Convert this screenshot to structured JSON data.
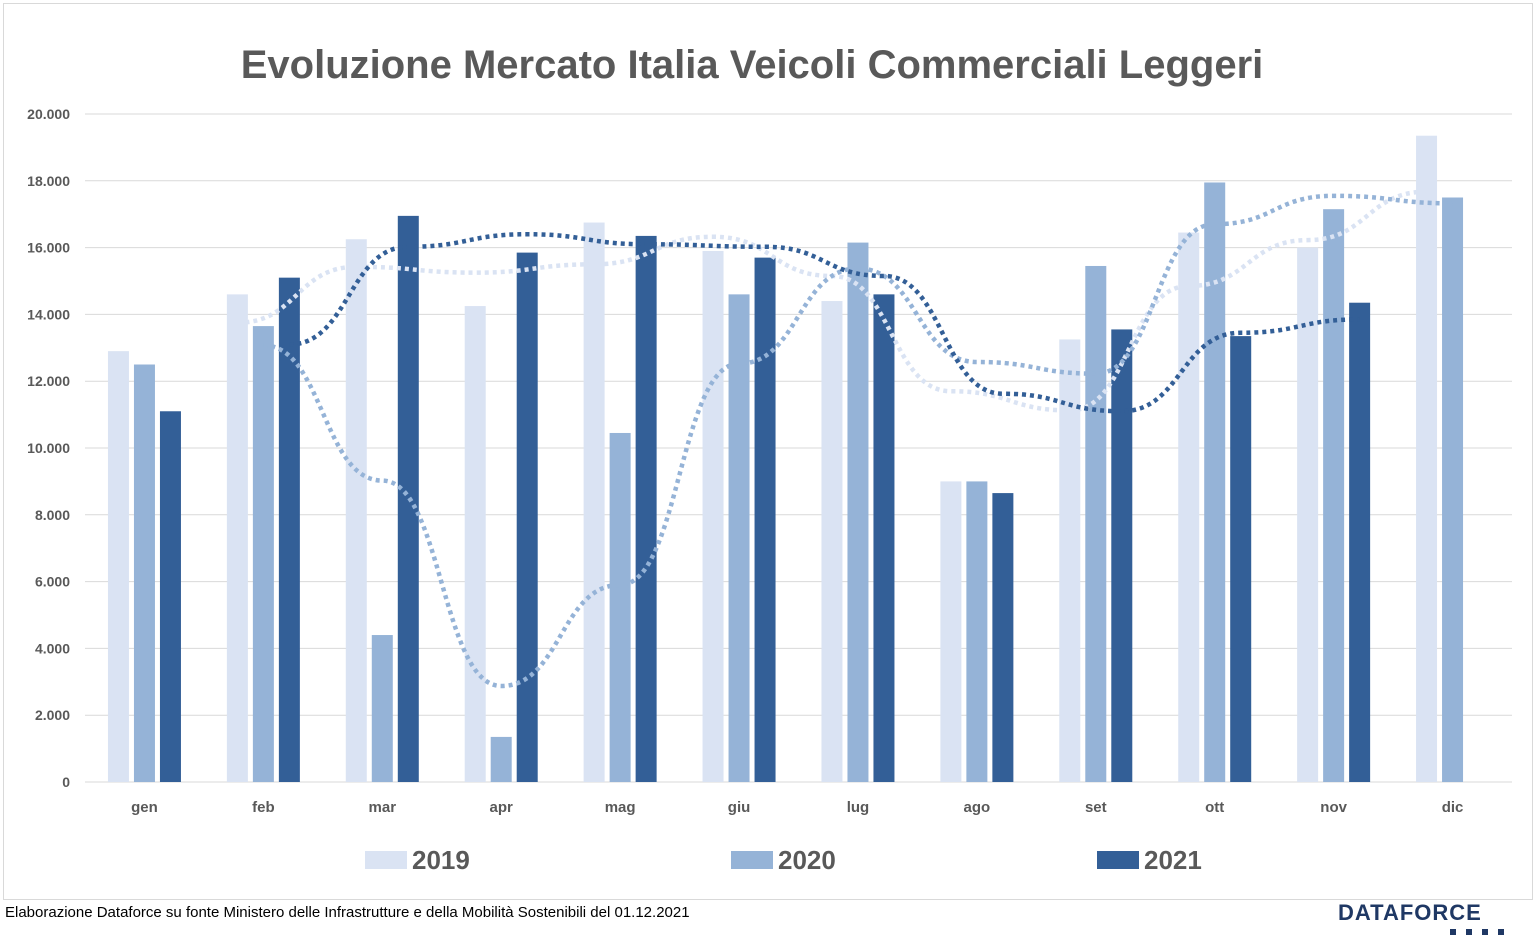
{
  "chart_data": {
    "type": "bar",
    "title": "Evoluzione Mercato Italia Veicoli Commerciali Leggeri",
    "categories": [
      "gen",
      "feb",
      "mar",
      "apr",
      "mag",
      "giu",
      "lug",
      "ago",
      "set",
      "ott",
      "nov",
      "dic"
    ],
    "ylim": [
      0,
      20000
    ],
    "yticks": [
      0,
      2000,
      4000,
      6000,
      8000,
      10000,
      12000,
      14000,
      16000,
      18000,
      20000
    ],
    "ytick_labels": [
      "0",
      "2.000",
      "4.000",
      "6.000",
      "8.000",
      "10.000",
      "12.000",
      "14.000",
      "16.000",
      "18.000",
      "20.000"
    ],
    "grid": true,
    "legend_position": "bottom",
    "series": [
      {
        "name": "2019",
        "color": "#dae3f3",
        "values": [
          12900,
          14600,
          16250,
          14250,
          16750,
          15900,
          14400,
          9000,
          13250,
          16450,
          16000,
          19350
        ]
      },
      {
        "name": "2020",
        "color": "#95b3d7",
        "values": [
          12500,
          13650,
          4400,
          1350,
          10450,
          14600,
          16150,
          9000,
          15450,
          17950,
          17150,
          17500
        ]
      },
      {
        "name": "2021",
        "color": "#335f97",
        "values": [
          11100,
          15100,
          16950,
          15850,
          16350,
          15700,
          14600,
          8650,
          13550,
          13350,
          14350,
          null
        ]
      }
    ],
    "trendlines": "dotted moving average per series"
  },
  "footer": {
    "source_note": "Elaborazione Dataforce su fonte Ministero delle Infrastrutture e della Mobilità Sostenibili del 01.12.2021",
    "logo": "DATAFORCE"
  }
}
